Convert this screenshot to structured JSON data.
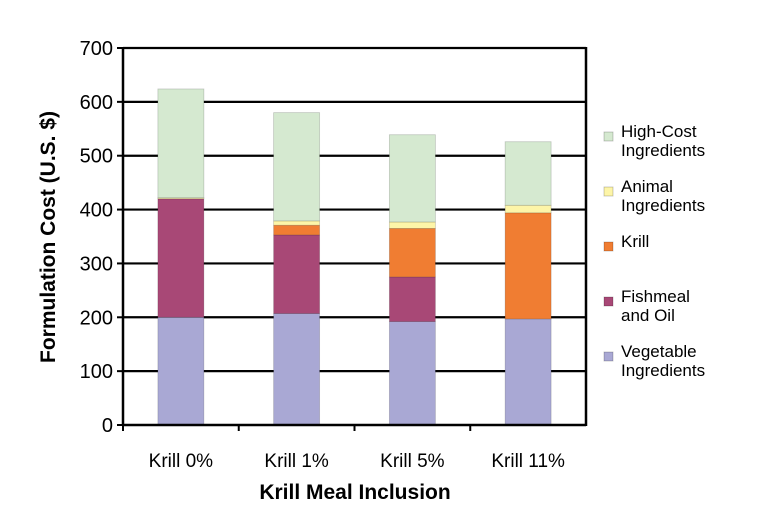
{
  "chart_data": {
    "type": "bar",
    "stacked": true,
    "title": "",
    "xlabel": "Krill Meal Inclusion",
    "ylabel": "Formulation Cost (U.S. $)",
    "ylim": [
      0,
      700
    ],
    "yticks": [
      0,
      100,
      200,
      300,
      400,
      500,
      600,
      700
    ],
    "grid": true,
    "legend_position": "right",
    "categories": [
      "Krill 0%",
      "Krill 1%",
      "Krill 5%",
      "Krill 11%"
    ],
    "series": [
      {
        "name": "Vegetable Ingredients",
        "legend_lines": [
          "Vegetable",
          "Ingredients"
        ],
        "color": "#a9a8d4",
        "values": [
          200,
          207,
          192,
          197
        ]
      },
      {
        "name": "Fishmeal and Oil",
        "legend_lines": [
          "Fishmeal",
          "and Oil"
        ],
        "color": "#a84876",
        "values": [
          220,
          146,
          83,
          0
        ]
      },
      {
        "name": "Krill",
        "legend_lines": [
          "Krill"
        ],
        "color": "#f07d32",
        "values": [
          0,
          18,
          90,
          197
        ]
      },
      {
        "name": "Animal Ingredients",
        "legend_lines": [
          "Animal",
          "Ingredients"
        ],
        "color": "#fdf5a8",
        "values": [
          2,
          8,
          12,
          14
        ]
      },
      {
        "name": "High-Cost Ingredients",
        "legend_lines": [
          "High-Cost",
          "Ingredients"
        ],
        "color": "#d5e9d0",
        "values": [
          202,
          201,
          162,
          118
        ]
      }
    ]
  }
}
